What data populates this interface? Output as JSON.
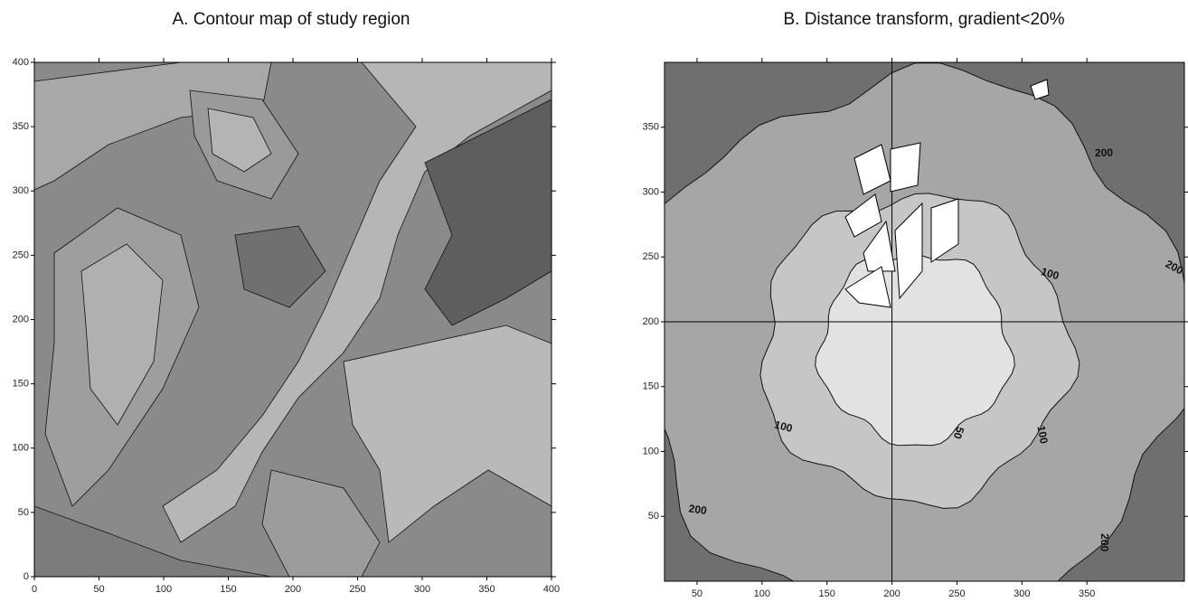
{
  "chart_data": [
    {
      "type": "contour",
      "title": "A. Contour map of study region",
      "xlim": [
        0,
        400
      ],
      "ylim": [
        0,
        400
      ],
      "xticks": [
        0,
        50,
        100,
        150,
        200,
        250,
        300,
        350,
        400
      ],
      "yticks": [
        0,
        50,
        100,
        150,
        200,
        250,
        300,
        350,
        400
      ]
    },
    {
      "type": "distance",
      "title": "B. Distance transform, gradient<20%",
      "xlim": [
        25,
        425
      ],
      "ylim": [
        0,
        400
      ],
      "xticks": [
        50,
        100,
        150,
        200,
        250,
        300,
        350
      ],
      "yticks": [
        50,
        100,
        150,
        200,
        250,
        300,
        350
      ],
      "levels": [
        50,
        100,
        200
      ],
      "crosshair": [
        200,
        200
      ]
    }
  ]
}
